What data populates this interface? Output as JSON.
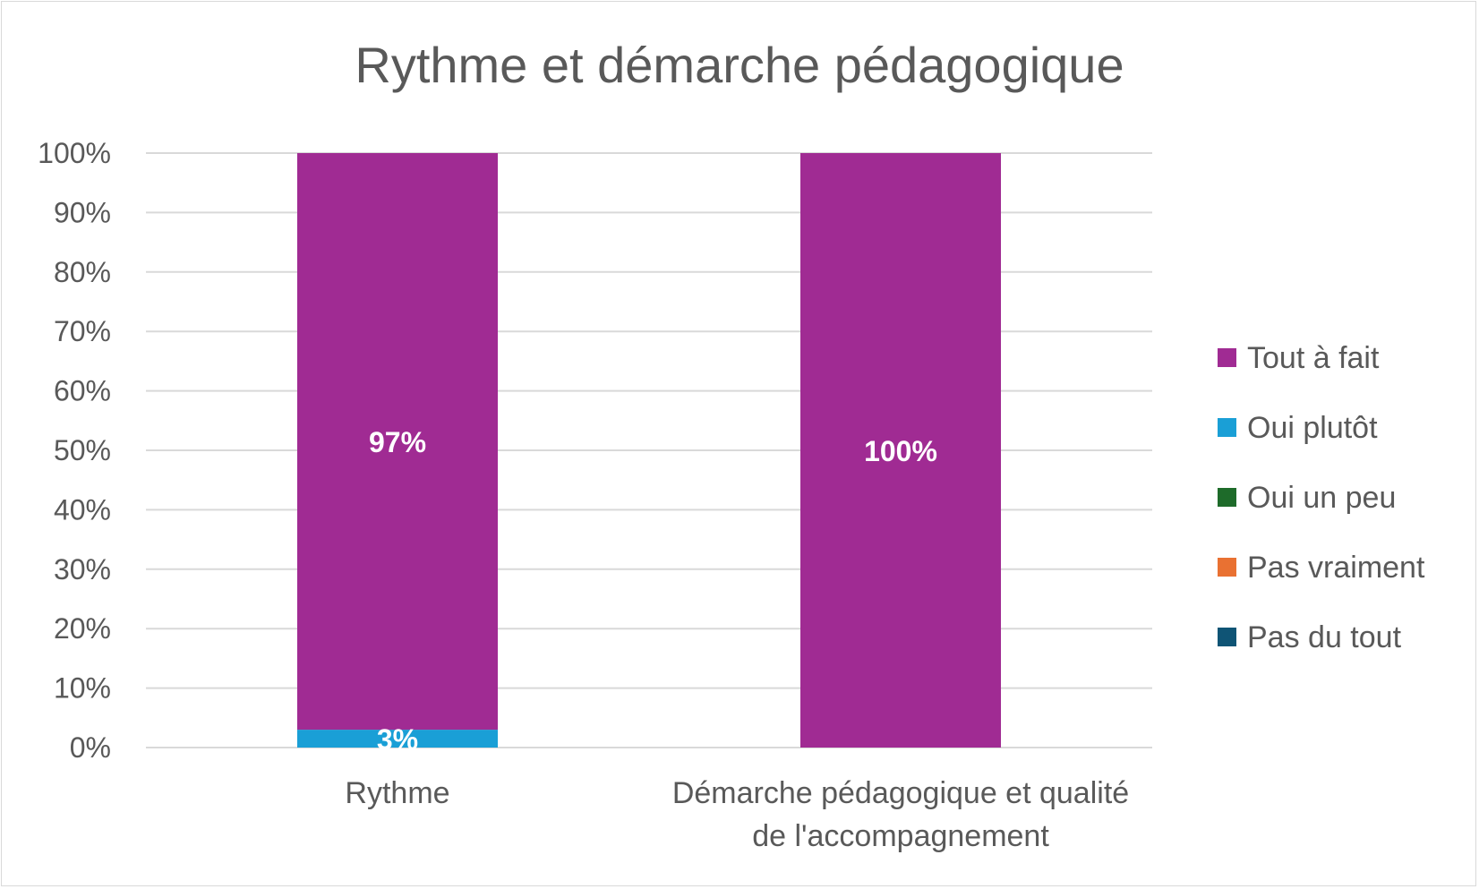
{
  "chart_data": {
    "type": "bar",
    "stacked": true,
    "percent_stacked": true,
    "title": "Rythme et démarche pédagogique",
    "categories": [
      [
        "Rythme"
      ],
      [
        "Démarche pédagogique et qualité",
        "de l'accompagnement"
      ]
    ],
    "series": [
      {
        "name": "Tout à fait",
        "color": "#a02b93",
        "values": [
          97,
          100
        ],
        "labels": [
          "97%",
          "100%"
        ]
      },
      {
        "name": "Oui plutôt",
        "color": "#1a9fd6",
        "values": [
          3,
          0
        ],
        "labels": [
          "3%",
          ""
        ]
      },
      {
        "name": "Oui un peu",
        "color": "#1e6b2a",
        "values": [
          0,
          0
        ],
        "labels": [
          "",
          ""
        ]
      },
      {
        "name": "Pas vraiment",
        "color": "#e97132",
        "values": [
          0,
          0
        ],
        "labels": [
          "",
          ""
        ]
      },
      {
        "name": "Pas du tout",
        "color": "#0f5475",
        "values": [
          0,
          0
        ],
        "labels": [
          "",
          ""
        ]
      }
    ],
    "stack_order": [
      "Oui plutôt",
      "Tout à fait"
    ],
    "ylim": [
      0,
      100
    ],
    "yticks": [
      "0%",
      "10%",
      "20%",
      "30%",
      "40%",
      "50%",
      "60%",
      "70%",
      "80%",
      "90%",
      "100%"
    ],
    "grid": true,
    "legend_position": "right"
  }
}
